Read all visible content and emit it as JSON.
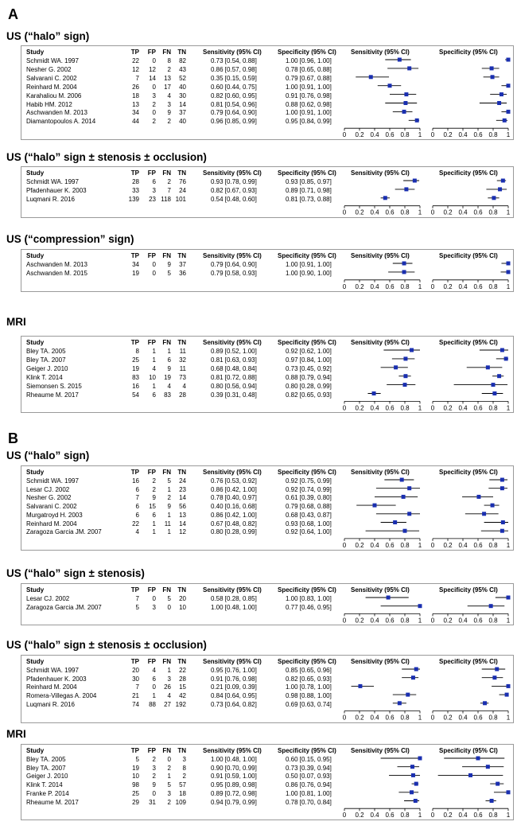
{
  "panels": [
    {
      "letter": "A",
      "blocks": [
        {
          "title": "US (“halo” sign)",
          "rows": [
            {
              "study": "Schmidt WA. 1997",
              "tp": 22,
              "fp": 0,
              "fn": 8,
              "tn": 82,
              "sens": 0.73,
              "sens_lo": 0.54,
              "sens_hi": 0.88,
              "spec": 1.0,
              "spec_lo": 0.96,
              "spec_hi": 1.0,
              "sens_txt": "0.73 [0.54, 0.88]",
              "spec_txt": "1.00 [0.96, 1.00]"
            },
            {
              "study": "Nesher G. 2002",
              "tp": 12,
              "fp": 12,
              "fn": 2,
              "tn": 43,
              "sens": 0.86,
              "sens_lo": 0.57,
              "sens_hi": 0.98,
              "spec": 0.78,
              "spec_lo": 0.65,
              "spec_hi": 0.88,
              "sens_txt": "0.86 [0.57, 0.98]",
              "spec_txt": "0.78 [0.65, 0.88]"
            },
            {
              "study": "Salvarani C. 2002",
              "tp": 7,
              "fp": 14,
              "fn": 13,
              "tn": 52,
              "sens": 0.35,
              "sens_lo": 0.15,
              "sens_hi": 0.59,
              "spec": 0.79,
              "spec_lo": 0.67,
              "spec_hi": 0.88,
              "sens_txt": "0.35 [0.15, 0.59]",
              "spec_txt": "0.79 [0.67, 0.88]"
            },
            {
              "study": "Reinhard M. 2004",
              "tp": 26,
              "fp": 0,
              "fn": 17,
              "tn": 40,
              "sens": 0.6,
              "sens_lo": 0.44,
              "sens_hi": 0.75,
              "spec": 1.0,
              "spec_lo": 0.91,
              "spec_hi": 1.0,
              "sens_txt": "0.60 [0.44, 0.75]",
              "spec_txt": "1.00 [0.91, 1.00]"
            },
            {
              "study": "Karahaliou M. 2006",
              "tp": 18,
              "fp": 3,
              "fn": 4,
              "tn": 30,
              "sens": 0.82,
              "sens_lo": 0.6,
              "sens_hi": 0.95,
              "spec": 0.91,
              "spec_lo": 0.76,
              "spec_hi": 0.98,
              "sens_txt": "0.82 [0.60, 0.95]",
              "spec_txt": "0.91 [0.76, 0.98]"
            },
            {
              "study": "Habib HM. 2012",
              "tp": 13,
              "fp": 2,
              "fn": 3,
              "tn": 14,
              "sens": 0.81,
              "sens_lo": 0.54,
              "sens_hi": 0.96,
              "spec": 0.88,
              "spec_lo": 0.62,
              "spec_hi": 0.98,
              "sens_txt": "0.81 [0.54, 0.96]",
              "spec_txt": "0.88 [0.62, 0.98]"
            },
            {
              "study": "Aschwanden M. 2013",
              "tp": 34,
              "fp": 0,
              "fn": 9,
              "tn": 37,
              "sens": 0.79,
              "sens_lo": 0.64,
              "sens_hi": 0.9,
              "spec": 1.0,
              "spec_lo": 0.91,
              "spec_hi": 1.0,
              "sens_txt": "0.79 [0.64, 0.90]",
              "spec_txt": "1.00 [0.91, 1.00]"
            },
            {
              "study": "Diamantopoulos A. 2014",
              "tp": 44,
              "fp": 2,
              "fn": 2,
              "tn": 40,
              "sens": 0.96,
              "sens_lo": 0.85,
              "sens_hi": 0.99,
              "spec": 0.95,
              "spec_lo": 0.84,
              "spec_hi": 0.99,
              "sens_txt": "0.96 [0.85, 0.99]",
              "spec_txt": "0.95 [0.84, 0.99]"
            }
          ]
        },
        {
          "title": "US (“halo” sign ± stenosis ± occlusion)",
          "rows": [
            {
              "study": "Schmidt WA. 1997",
              "tp": 28,
              "fp": 6,
              "fn": 2,
              "tn": 76,
              "sens": 0.93,
              "sens_lo": 0.78,
              "sens_hi": 0.99,
              "spec": 0.93,
              "spec_lo": 0.85,
              "spec_hi": 0.97,
              "sens_txt": "0.93 [0.78, 0.99]",
              "spec_txt": "0.93 [0.85, 0.97]"
            },
            {
              "study": "Pfadenhauer K. 2003",
              "tp": 33,
              "fp": 3,
              "fn": 7,
              "tn": 24,
              "sens": 0.82,
              "sens_lo": 0.67,
              "sens_hi": 0.93,
              "spec": 0.89,
              "spec_lo": 0.71,
              "spec_hi": 0.98,
              "sens_txt": "0.82 [0.67, 0.93]",
              "spec_txt": "0.89 [0.71, 0.98]"
            },
            {
              "study": "Luqmani R. 2016",
              "tp": 139,
              "fp": 23,
              "fn": 118,
              "tn": 101,
              "sens": 0.54,
              "sens_lo": 0.48,
              "sens_hi": 0.6,
              "spec": 0.81,
              "spec_lo": 0.73,
              "spec_hi": 0.88,
              "sens_txt": "0.54 [0.48, 0.60]",
              "spec_txt": "0.81 [0.73, 0.88]"
            }
          ]
        },
        {
          "title": "US (“compression” sign)",
          "rows": [
            {
              "study": "Aschwanden M. 2013",
              "tp": 34,
              "fp": 0,
              "fn": 9,
              "tn": 37,
              "sens": 0.79,
              "sens_lo": 0.64,
              "sens_hi": 0.9,
              "spec": 1.0,
              "spec_lo": 0.91,
              "spec_hi": 1.0,
              "sens_txt": "0.79 [0.64, 0.90]",
              "spec_txt": "1.00 [0.91, 1.00]"
            },
            {
              "study": "Aschwanden M. 2015",
              "tp": 19,
              "fp": 0,
              "fn": 5,
              "tn": 36,
              "sens": 0.79,
              "sens_lo": 0.58,
              "sens_hi": 0.93,
              "spec": 1.0,
              "spec_lo": 0.9,
              "spec_hi": 1.0,
              "sens_txt": "0.79 [0.58, 0.93]",
              "spec_txt": "1.00 [0.90, 1.00]"
            }
          ]
        },
        {
          "title": "MRI",
          "rows": [
            {
              "study": "Bley TA. 2005",
              "tp": 8,
              "fp": 1,
              "fn": 1,
              "tn": 11,
              "sens": 0.89,
              "sens_lo": 0.52,
              "sens_hi": 1.0,
              "spec": 0.92,
              "spec_lo": 0.62,
              "spec_hi": 1.0,
              "sens_txt": "0.89 [0.52, 1.00]",
              "spec_txt": "0.92 [0.62, 1.00]"
            },
            {
              "study": "Bley TA. 2007",
              "tp": 25,
              "fp": 1,
              "fn": 6,
              "tn": 32,
              "sens": 0.81,
              "sens_lo": 0.63,
              "sens_hi": 0.93,
              "spec": 0.97,
              "spec_lo": 0.84,
              "spec_hi": 1.0,
              "sens_txt": "0.81 [0.63, 0.93]",
              "spec_txt": "0.97 [0.84, 1.00]"
            },
            {
              "study": "Geiger J. 2010",
              "tp": 19,
              "fp": 4,
              "fn": 9,
              "tn": 11,
              "sens": 0.68,
              "sens_lo": 0.48,
              "sens_hi": 0.84,
              "spec": 0.73,
              "spec_lo": 0.45,
              "spec_hi": 0.92,
              "sens_txt": "0.68 [0.48, 0.84]",
              "spec_txt": "0.73 [0.45, 0.92]"
            },
            {
              "study": "Klink T. 2014",
              "tp": 83,
              "fp": 10,
              "fn": 19,
              "tn": 73,
              "sens": 0.81,
              "sens_lo": 0.72,
              "sens_hi": 0.88,
              "spec": 0.88,
              "spec_lo": 0.79,
              "spec_hi": 0.94,
              "sens_txt": "0.81 [0.72, 0.88]",
              "spec_txt": "0.88 [0.79, 0.94]"
            },
            {
              "study": "Siemonsen S. 2015",
              "tp": 16,
              "fp": 1,
              "fn": 4,
              "tn": 4,
              "sens": 0.8,
              "sens_lo": 0.56,
              "sens_hi": 0.94,
              "spec": 0.8,
              "spec_lo": 0.28,
              "spec_hi": 0.99,
              "sens_txt": "0.80 [0.56, 0.94]",
              "spec_txt": "0.80 [0.28, 0.99]"
            },
            {
              "study": "Rheaume M. 2017",
              "tp": 54,
              "fp": 6,
              "fn": 83,
              "tn": 28,
              "sens": 0.39,
              "sens_lo": 0.31,
              "sens_hi": 0.48,
              "spec": 0.82,
              "spec_lo": 0.65,
              "spec_hi": 0.93,
              "sens_txt": "0.39 [0.31, 0.48]",
              "spec_txt": "0.82 [0.65, 0.93]"
            }
          ]
        }
      ]
    },
    {
      "letter": "B",
      "blocks": [
        {
          "title": "US (“halo” sign)",
          "rows": [
            {
              "study": "Schmidt WA. 1997",
              "tp": 16,
              "fp": 2,
              "fn": 5,
              "tn": 24,
              "sens": 0.76,
              "sens_lo": 0.53,
              "sens_hi": 0.92,
              "spec": 0.92,
              "spec_lo": 0.75,
              "spec_hi": 0.99,
              "sens_txt": "0.76 [0.53, 0.92]",
              "spec_txt": "0.92 [0.75, 0.99]"
            },
            {
              "study": "Lesar CJ. 2002",
              "tp": 6,
              "fp": 2,
              "fn": 1,
              "tn": 23,
              "sens": 0.86,
              "sens_lo": 0.42,
              "sens_hi": 1.0,
              "spec": 0.92,
              "spec_lo": 0.74,
              "spec_hi": 0.99,
              "sens_txt": "0.86 [0.42, 1.00]",
              "spec_txt": "0.92 [0.74, 0.99]"
            },
            {
              "study": "Nesher G. 2002",
              "tp": 7,
              "fp": 9,
              "fn": 2,
              "tn": 14,
              "sens": 0.78,
              "sens_lo": 0.4,
              "sens_hi": 0.97,
              "spec": 0.61,
              "spec_lo": 0.39,
              "spec_hi": 0.8,
              "sens_txt": "0.78 [0.40, 0.97]",
              "spec_txt": "0.61 [0.39, 0.80]"
            },
            {
              "study": "Salvarani C. 2002",
              "tp": 6,
              "fp": 15,
              "fn": 9,
              "tn": 56,
              "sens": 0.4,
              "sens_lo": 0.16,
              "sens_hi": 0.68,
              "spec": 0.79,
              "spec_lo": 0.68,
              "spec_hi": 0.88,
              "sens_txt": "0.40 [0.16, 0.68]",
              "spec_txt": "0.79 [0.68, 0.88]"
            },
            {
              "study": "Murgatroyd H. 2003",
              "tp": 6,
              "fp": 6,
              "fn": 1,
              "tn": 13,
              "sens": 0.86,
              "sens_lo": 0.42,
              "sens_hi": 1.0,
              "spec": 0.68,
              "spec_lo": 0.43,
              "spec_hi": 0.87,
              "sens_txt": "0.86 [0.42, 1.00]",
              "spec_txt": "0.68 [0.43, 0.87]"
            },
            {
              "study": "Reinhard M. 2004",
              "tp": 22,
              "fp": 1,
              "fn": 11,
              "tn": 14,
              "sens": 0.67,
              "sens_lo": 0.48,
              "sens_hi": 0.82,
              "spec": 0.93,
              "spec_lo": 0.68,
              "spec_hi": 1.0,
              "sens_txt": "0.67 [0.48, 0.82]",
              "spec_txt": "0.93 [0.68, 1.00]"
            },
            {
              "study": "Zaragoza Garcia JM. 2007",
              "tp": 4,
              "fp": 1,
              "fn": 1,
              "tn": 12,
              "sens": 0.8,
              "sens_lo": 0.28,
              "sens_hi": 0.99,
              "spec": 0.92,
              "spec_lo": 0.64,
              "spec_hi": 1.0,
              "sens_txt": "0.80 [0.28, 0.99]",
              "spec_txt": "0.92 [0.64, 1.00]"
            }
          ]
        },
        {
          "title": "US (“halo” sign ± stenosis)",
          "rows": [
            {
              "study": "Lesar CJ. 2002",
              "tp": 7,
              "fp": 0,
              "fn": 5,
              "tn": 20,
              "sens": 0.58,
              "sens_lo": 0.28,
              "sens_hi": 0.85,
              "spec": 1.0,
              "spec_lo": 0.83,
              "spec_hi": 1.0,
              "sens_txt": "0.58 [0.28, 0.85]",
              "spec_txt": "1.00 [0.83, 1.00]"
            },
            {
              "study": "Zaragoza Garcia JM. 2007",
              "tp": 5,
              "fp": 3,
              "fn": 0,
              "tn": 10,
              "sens": 1.0,
              "sens_lo": 0.48,
              "sens_hi": 1.0,
              "spec": 0.77,
              "spec_lo": 0.46,
              "spec_hi": 0.95,
              "sens_txt": "1.00 [0.48, 1.00]",
              "spec_txt": "0.77 [0.46, 0.95]"
            }
          ]
        },
        {
          "title": "US (“halo” sign ± stenosis ± occlusion)",
          "rows": [
            {
              "study": "Schmidt WA. 1997",
              "tp": 20,
              "fp": 4,
              "fn": 1,
              "tn": 22,
              "sens": 0.95,
              "sens_lo": 0.76,
              "sens_hi": 1.0,
              "spec": 0.85,
              "spec_lo": 0.65,
              "spec_hi": 0.96,
              "sens_txt": "0.95 [0.76, 1.00]",
              "spec_txt": "0.85 [0.65, 0.96]"
            },
            {
              "study": "Pfadenhauer K. 2003",
              "tp": 30,
              "fp": 6,
              "fn": 3,
              "tn": 28,
              "sens": 0.91,
              "sens_lo": 0.76,
              "sens_hi": 0.98,
              "spec": 0.82,
              "spec_lo": 0.65,
              "spec_hi": 0.93,
              "sens_txt": "0.91 [0.76, 0.98]",
              "spec_txt": "0.82 [0.65, 0.93]"
            },
            {
              "study": "Reinhard M. 2004",
              "tp": 7,
              "fp": 0,
              "fn": 26,
              "tn": 15,
              "sens": 0.21,
              "sens_lo": 0.09,
              "sens_hi": 0.39,
              "spec": 1.0,
              "spec_lo": 0.78,
              "spec_hi": 1.0,
              "sens_txt": "0.21 [0.09, 0.39]",
              "spec_txt": "1.00 [0.78, 1.00]"
            },
            {
              "study": "Romera-Villegas A. 2004",
              "tp": 21,
              "fp": 1,
              "fn": 4,
              "tn": 42,
              "sens": 0.84,
              "sens_lo": 0.64,
              "sens_hi": 0.95,
              "spec": 0.98,
              "spec_lo": 0.88,
              "spec_hi": 1.0,
              "sens_txt": "0.84 [0.64, 0.95]",
              "spec_txt": "0.98 [0.88, 1.00]"
            },
            {
              "study": "Luqmani R. 2016",
              "tp": 74,
              "fp": 88,
              "fn": 27,
              "tn": 192,
              "sens": 0.73,
              "sens_lo": 0.64,
              "sens_hi": 0.82,
              "spec": 0.69,
              "spec_lo": 0.63,
              "spec_hi": 0.74,
              "sens_txt": "0.73 [0.64, 0.82]",
              "spec_txt": "0.69 [0.63, 0.74]"
            }
          ]
        },
        {
          "title": "MRI",
          "rows": [
            {
              "study": "Bley TA. 2005",
              "tp": 5,
              "fp": 2,
              "fn": 0,
              "tn": 3,
              "sens": 1.0,
              "sens_lo": 0.48,
              "sens_hi": 1.0,
              "spec": 0.6,
              "spec_lo": 0.15,
              "spec_hi": 0.95,
              "sens_txt": "1.00 [0.48, 1.00]",
              "spec_txt": "0.60 [0.15, 0.95]"
            },
            {
              "study": "Bley TA. 2007",
              "tp": 19,
              "fp": 3,
              "fn": 2,
              "tn": 8,
              "sens": 0.9,
              "sens_lo": 0.7,
              "sens_hi": 0.99,
              "spec": 0.73,
              "spec_lo": 0.39,
              "spec_hi": 0.94,
              "sens_txt": "0.90 [0.70, 0.99]",
              "spec_txt": "0.73 [0.39, 0.94]"
            },
            {
              "study": "Geiger J. 2010",
              "tp": 10,
              "fp": 2,
              "fn": 1,
              "tn": 2,
              "sens": 0.91,
              "sens_lo": 0.59,
              "sens_hi": 1.0,
              "spec": 0.5,
              "spec_lo": 0.07,
              "spec_hi": 0.93,
              "sens_txt": "0.91 [0.59, 1.00]",
              "spec_txt": "0.50 [0.07, 0.93]"
            },
            {
              "study": "Klink T. 2014",
              "tp": 98,
              "fp": 9,
              "fn": 5,
              "tn": 57,
              "sens": 0.95,
              "sens_lo": 0.89,
              "sens_hi": 0.98,
              "spec": 0.86,
              "spec_lo": 0.76,
              "spec_hi": 0.94,
              "sens_txt": "0.95 [0.89, 0.98]",
              "spec_txt": "0.86 [0.76, 0.94]"
            },
            {
              "study": "Franke P. 2014",
              "tp": 25,
              "fp": 0,
              "fn": 3,
              "tn": 18,
              "sens": 0.89,
              "sens_lo": 0.72,
              "sens_hi": 0.98,
              "spec": 1.0,
              "spec_lo": 0.81,
              "spec_hi": 1.0,
              "sens_txt": "0.89 [0.72, 0.98]",
              "spec_txt": "1.00 [0.81, 1.00]"
            },
            {
              "study": "Rheaume M. 2017",
              "tp": 29,
              "fp": 31,
              "fn": 2,
              "tn": 109,
              "sens": 0.94,
              "sens_lo": 0.79,
              "sens_hi": 0.99,
              "spec": 0.78,
              "spec_lo": 0.7,
              "spec_hi": 0.84,
              "sens_txt": "0.94 [0.79, 0.99]",
              "spec_txt": "0.78 [0.70, 0.84]"
            }
          ]
        }
      ]
    }
  ],
  "headers": {
    "study": "Study",
    "tp": "TP",
    "fp": "FP",
    "fn": "FN",
    "tn": "TN",
    "sens": "Sensitivity (95% CI)",
    "spec": "Specificity (95% CI)"
  },
  "axis": {
    "ticks": [
      "0",
      "0.2",
      "0.4",
      "0.6",
      "0.8",
      "1"
    ],
    "xlim": [
      0,
      1
    ]
  },
  "colors": {
    "marker": "#1a2fb0",
    "line": "#000000",
    "frame": "#9a9a9a"
  },
  "chart_data": {
    "type": "forest",
    "series": [
      {
        "name": "Sensitivity (95% CI)",
        "metric": "sensitivity"
      },
      {
        "name": "Specificity (95% CI)",
        "metric": "specificity"
      }
    ],
    "xlim": [
      0,
      1
    ],
    "note": "Point estimates and CIs per study are in panels[].blocks[].rows[]"
  }
}
